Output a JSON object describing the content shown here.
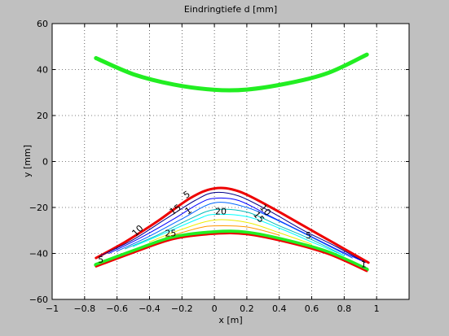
{
  "chart_data": {
    "type": "contour",
    "title": "Eindringtiefe    d [mm]",
    "xlabel": "x   [m]",
    "ylabel": "y    [mm]",
    "xlim": [
      -1,
      1.2
    ],
    "ylim": [
      -60,
      60
    ],
    "x_ticks": [
      -1,
      -0.8,
      -0.6,
      -0.4,
      -0.2,
      0,
      0.2,
      0.4,
      0.6,
      0.8,
      1
    ],
    "y_ticks": [
      -60,
      -40,
      -20,
      0,
      20,
      40,
      60
    ],
    "x_tick_labels": [
      "−1",
      "−0.8",
      "−0.6",
      "−0.4",
      "−0.2",
      "0",
      "0.2",
      "0.4",
      "0.6",
      "0.8",
      "1"
    ],
    "y_tick_labels": [
      "−60",
      "−40",
      "−20",
      "0",
      "20",
      "40",
      "60"
    ],
    "grid": true,
    "colors": {
      "background": "#c0c0c0",
      "plot_area": "#ffffff",
      "green": "#22ee22",
      "red": "#ee0000"
    },
    "series": [
      {
        "color": "#22ee22",
        "width": 5,
        "points": [
          [
            -0.73,
            45
          ],
          [
            -0.5,
            38
          ],
          [
            -0.25,
            33.5
          ],
          [
            0,
            31.2
          ],
          [
            0.2,
            31.3
          ],
          [
            0.45,
            34
          ],
          [
            0.7,
            38.5
          ],
          [
            0.94,
            46.5
          ]
        ]
      },
      {
        "color": "#ee0000",
        "width": 3,
        "points": [
          [
            -0.73,
            -42
          ],
          [
            -0.55,
            -35
          ],
          [
            -0.35,
            -26
          ],
          [
            -0.15,
            -16
          ],
          [
            0,
            -11.7
          ],
          [
            0.15,
            -13
          ],
          [
            0.35,
            -20
          ],
          [
            0.55,
            -28
          ],
          [
            0.75,
            -36
          ],
          [
            0.95,
            -44
          ]
        ]
      },
      {
        "color": "#000088",
        "width": 1,
        "points": [
          [
            -0.7,
            -41
          ],
          [
            -0.5,
            -34
          ],
          [
            -0.3,
            -25
          ],
          [
            -0.12,
            -17
          ],
          [
            0,
            -13.5
          ],
          [
            0.15,
            -15
          ],
          [
            0.35,
            -22
          ],
          [
            0.55,
            -30
          ],
          [
            0.75,
            -37
          ],
          [
            0.93,
            -44
          ]
        ]
      },
      {
        "color": "#0000ff",
        "width": 1,
        "points": [
          [
            -0.65,
            -40
          ],
          [
            -0.45,
            -33
          ],
          [
            -0.25,
            -25
          ],
          [
            -0.1,
            -18.5
          ],
          [
            0,
            -16
          ],
          [
            0.15,
            -17
          ],
          [
            0.35,
            -24
          ],
          [
            0.55,
            -31
          ],
          [
            0.75,
            -38
          ],
          [
            0.9,
            -43
          ]
        ]
      },
      {
        "color": "#0066ff",
        "width": 1,
        "points": [
          [
            -0.6,
            -39
          ],
          [
            -0.4,
            -32.5
          ],
          [
            -0.2,
            -25
          ],
          [
            0,
            -18
          ],
          [
            0.2,
            -20
          ],
          [
            0.4,
            -26
          ],
          [
            0.6,
            -33
          ],
          [
            0.85,
            -42
          ]
        ]
      },
      {
        "color": "#00bbbb",
        "width": 1,
        "points": [
          [
            -0.55,
            -38
          ],
          [
            -0.35,
            -32
          ],
          [
            -0.15,
            -25
          ],
          [
            0,
            -21
          ],
          [
            0.2,
            -22
          ],
          [
            0.4,
            -28
          ],
          [
            0.6,
            -34
          ],
          [
            0.8,
            -41
          ]
        ]
      },
      {
        "color": "#00ffff",
        "width": 1,
        "points": [
          [
            -0.5,
            -37
          ],
          [
            -0.3,
            -31
          ],
          [
            -0.1,
            -25
          ],
          [
            0,
            -23
          ],
          [
            0.2,
            -24
          ],
          [
            0.4,
            -29
          ],
          [
            0.6,
            -35
          ],
          [
            0.8,
            -41
          ]
        ]
      },
      {
        "color": "#eeee00",
        "width": 1,
        "points": [
          [
            -0.4,
            -35
          ],
          [
            -0.2,
            -29.5
          ],
          [
            0,
            -25.5
          ],
          [
            0.2,
            -26.5
          ],
          [
            0.4,
            -31
          ],
          [
            0.6,
            -36
          ]
        ]
      },
      {
        "color": "#ff9900",
        "width": 1,
        "points": [
          [
            -0.3,
            -33
          ],
          [
            -0.1,
            -29
          ],
          [
            0,
            -28
          ],
          [
            0.2,
            -28.5
          ],
          [
            0.4,
            -32
          ]
        ]
      },
      {
        "color": "#880000",
        "width": 1,
        "points": [
          [
            -0.2,
            -32
          ],
          [
            0,
            -30.5
          ],
          [
            0.2,
            -30.8
          ],
          [
            0.35,
            -32.5
          ]
        ]
      },
      {
        "color": "#22ee22",
        "width": 5,
        "points": [
          [
            -0.73,
            -45
          ],
          [
            -0.5,
            -39
          ],
          [
            -0.25,
            -33
          ],
          [
            0,
            -30.8
          ],
          [
            0.2,
            -31
          ],
          [
            0.45,
            -34.5
          ],
          [
            0.7,
            -39.5
          ],
          [
            0.94,
            -47
          ]
        ]
      },
      {
        "color": "#ee0000",
        "width": 2,
        "points": [
          [
            -0.73,
            -45.8
          ],
          [
            -0.5,
            -39.8
          ],
          [
            -0.25,
            -33.8
          ],
          [
            0,
            -31.6
          ],
          [
            0.2,
            -31.8
          ],
          [
            0.45,
            -35.3
          ],
          [
            0.7,
            -40.3
          ],
          [
            0.94,
            -47.8
          ]
        ]
      }
    ],
    "contour_labels": [
      {
        "text": "5",
        "x": -0.16,
        "y": -15.5,
        "rot": -35
      },
      {
        "text": "15",
        "x": -0.23,
        "y": -22,
        "rot": -35
      },
      {
        "text": "1",
        "x": -0.15,
        "y": -22.5,
        "rot": -35
      },
      {
        "text": "20",
        "x": 0.04,
        "y": -23,
        "rot": 0
      },
      {
        "text": "10",
        "x": -0.46,
        "y": -31,
        "rot": -45
      },
      {
        "text": "25",
        "x": -0.27,
        "y": -32.5,
        "rot": 0
      },
      {
        "text": "10",
        "x": 0.3,
        "y": -22,
        "rot": 50
      },
      {
        "text": "15",
        "x": 0.26,
        "y": -25,
        "rot": 50
      },
      {
        "text": "5",
        "x": 0.58,
        "y": -33.5,
        "rot": 0
      },
      {
        "text": "5",
        "x": -0.7,
        "y": -44,
        "rot": 0
      },
      {
        "text": "1",
        "x": 0.92,
        "y": -46,
        "rot": 0
      }
    ]
  }
}
